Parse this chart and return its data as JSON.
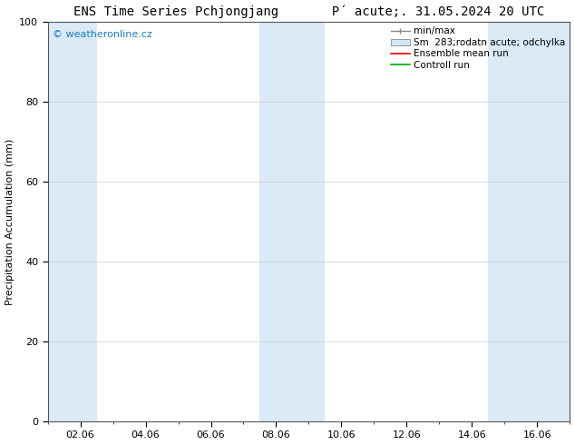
{
  "title": "ENS Time Series Pchjongjang       P´ acute;. 31.05.2024 20 UTC",
  "ylabel": "Precipitation Accumulation (mm)",
  "ylim": [
    0,
    100
  ],
  "yticks": [
    0,
    20,
    40,
    60,
    80,
    100
  ],
  "x_tick_labels": [
    "02.06",
    "04.06",
    "06.06",
    "08.06",
    "10.06",
    "12.06",
    "14.06",
    "16.06"
  ],
  "x_tick_positions": [
    2,
    4,
    6,
    8,
    10,
    12,
    14,
    16
  ],
  "x_min": 1,
  "x_max": 17,
  "bg_color": "#ffffff",
  "plot_bg_color": "#ffffff",
  "shaded_bands": [
    {
      "x_start": 1.0,
      "x_end": 2.5,
      "color": "#daeaf7"
    },
    {
      "x_start": 7.5,
      "x_end": 9.5,
      "color": "#daeaf7"
    },
    {
      "x_start": 14.5,
      "x_end": 17.0,
      "color": "#daeaf7"
    }
  ],
  "watermark_text": "© weatheronline.cz",
  "watermark_color": "#1a7bbf",
  "legend_labels": [
    "min/max",
    "Sm  283;rodatn acute; odchylka",
    "Ensemble mean run",
    "Controll run"
  ],
  "legend_handle_colors": [
    "#aaaaaa",
    "#d0e8f8",
    "#ff0000",
    "#00aa00"
  ],
  "title_fontsize": 10,
  "tick_fontsize": 8,
  "label_fontsize": 8,
  "legend_fontsize": 7.5,
  "watermark_fontsize": 8
}
